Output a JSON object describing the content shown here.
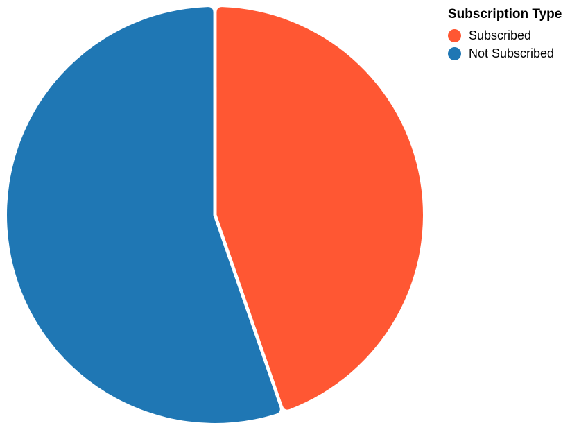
{
  "chart_data": {
    "type": "pie",
    "title": "",
    "legend": {
      "title": "Subscription Type",
      "placement": "top-right"
    },
    "slices": [
      {
        "label": "Subscribed",
        "value": 44.7,
        "color": "#ff5733"
      },
      {
        "label": "Not Subscribed",
        "value": 55.3,
        "color": "#1f77b4"
      }
    ]
  }
}
